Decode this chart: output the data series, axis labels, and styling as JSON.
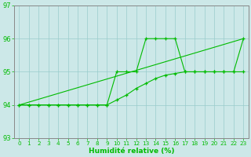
{
  "xlabel": "Humidité relative (%)",
  "bg_color": "#cce8e8",
  "line_color": "#00bb00",
  "grid_color": "#99cccc",
  "ylim": [
    93,
    97
  ],
  "xlim": [
    -0.5,
    23.5
  ],
  "yticks": [
    93,
    94,
    95,
    96,
    97
  ],
  "xticks": [
    0,
    1,
    2,
    3,
    4,
    5,
    6,
    7,
    8,
    9,
    10,
    11,
    12,
    13,
    14,
    15,
    16,
    17,
    18,
    19,
    20,
    21,
    22,
    23
  ],
  "line1_x": [
    0,
    1,
    2,
    3,
    4,
    5,
    6,
    7,
    8,
    9,
    10,
    11,
    12,
    13,
    14,
    15,
    16,
    17,
    18,
    19,
    20,
    21,
    22,
    23
  ],
  "line1_y": [
    94,
    94,
    94,
    94,
    94,
    94,
    94,
    94,
    94,
    94,
    95,
    95,
    95,
    96,
    96,
    96,
    96,
    95,
    95,
    95,
    95,
    95,
    95,
    96
  ],
  "line2_x": [
    0,
    23
  ],
  "line2_y": [
    94,
    96
  ],
  "line3_x": [
    0,
    1,
    2,
    3,
    4,
    5,
    6,
    7,
    8,
    9,
    10,
    11,
    12,
    13,
    14,
    15,
    16,
    17,
    18,
    19,
    20,
    21,
    22,
    23
  ],
  "line3_y": [
    94,
    94,
    94,
    94,
    94,
    94,
    94,
    94,
    94,
    94,
    94.15,
    94.3,
    94.5,
    94.65,
    94.8,
    94.9,
    94.95,
    95.0,
    95.0,
    95.0,
    95.0,
    95.0,
    95.0,
    95.0
  ]
}
